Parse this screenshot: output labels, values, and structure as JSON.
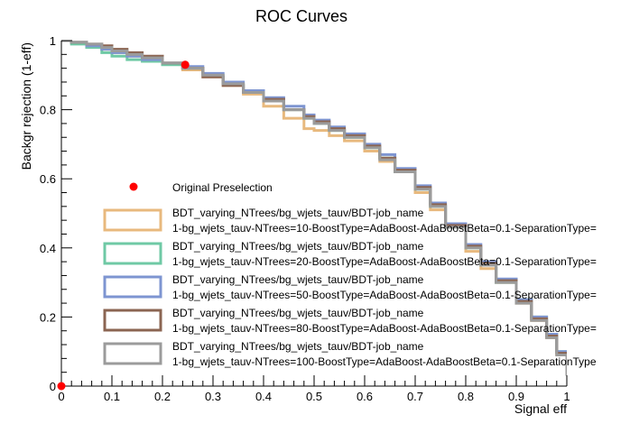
{
  "chart_data": {
    "type": "line",
    "title": "ROC Curves",
    "xlabel": "Signal eff",
    "ylabel": "Backgr rejection (1-eff)",
    "xlim": [
      0,
      1
    ],
    "ylim": [
      0,
      1
    ],
    "x_ticks": [
      "0",
      "0.1",
      "0.2",
      "0.3",
      "0.4",
      "0.5",
      "0.6",
      "0.7",
      "0.8",
      "0.9",
      "1"
    ],
    "y_ticks": [
      "0",
      "0.2",
      "0.4",
      "0.6",
      "0.8",
      "1"
    ],
    "grid": false,
    "legend_placement": "bottom-left",
    "series": [
      {
        "label_line1": "BDT_varying_NTrees/bg_wjets_tauv/BDT-job_name",
        "label_line2": "1-bg_wjets_tauv-NTrees=10-BoostType=AdaBoost-AdaBoostBeta=0.1-SeparationType=",
        "color": "#e8b97e",
        "x": [
          0.0,
          0.02,
          0.05,
          0.08,
          0.1,
          0.13,
          0.16,
          0.2,
          0.24,
          0.28,
          0.32,
          0.36,
          0.4,
          0.44,
          0.48,
          0.5,
          0.53,
          0.56,
          0.6,
          0.63,
          0.66,
          0.7,
          0.73,
          0.76,
          0.8,
          0.83,
          0.86,
          0.9,
          0.93,
          0.96,
          0.98,
          1.0
        ],
        "y": [
          1.0,
          0.995,
          0.985,
          0.975,
          0.965,
          0.955,
          0.945,
          0.935,
          0.915,
          0.895,
          0.87,
          0.845,
          0.81,
          0.775,
          0.745,
          0.74,
          0.725,
          0.71,
          0.68,
          0.65,
          0.62,
          0.56,
          0.51,
          0.46,
          0.39,
          0.34,
          0.3,
          0.24,
          0.19,
          0.14,
          0.09,
          0.04
        ]
      },
      {
        "label_line1": "BDT_varying_NTrees/bg_wjets_tauv/BDT-job_name",
        "label_line2": "1-bg_wjets_tauv-NTrees=20-BoostType=AdaBoost-AdaBoostBeta=0.1-SeparationType=",
        "color": "#6fc9a5",
        "x": [
          0.0,
          0.02,
          0.05,
          0.08,
          0.1,
          0.13,
          0.16,
          0.2,
          0.24,
          0.28,
          0.32,
          0.36,
          0.4,
          0.44,
          0.48,
          0.5,
          0.53,
          0.56,
          0.6,
          0.63,
          0.66,
          0.7,
          0.73,
          0.76,
          0.8,
          0.83,
          0.86,
          0.9,
          0.93,
          0.96,
          0.98,
          1.0
        ],
        "y": [
          1.0,
          0.99,
          0.98,
          0.965,
          0.955,
          0.945,
          0.94,
          0.93,
          0.92,
          0.9,
          0.875,
          0.85,
          0.83,
          0.8,
          0.775,
          0.76,
          0.74,
          0.72,
          0.69,
          0.66,
          0.62,
          0.57,
          0.52,
          0.46,
          0.4,
          0.35,
          0.3,
          0.25,
          0.2,
          0.15,
          0.1,
          0.05
        ]
      },
      {
        "label_line1": "BDT_varying_NTrees/bg_wjets_tauv/BDT-job_name",
        "label_line2": "1-bg_wjets_tauv-NTrees=50-BoostType=AdaBoost-AdaBoostBeta=0.1-SeparationType=",
        "color": "#7e95d1",
        "x": [
          0.0,
          0.02,
          0.05,
          0.08,
          0.1,
          0.13,
          0.16,
          0.2,
          0.24,
          0.28,
          0.32,
          0.36,
          0.4,
          0.44,
          0.48,
          0.5,
          0.53,
          0.56,
          0.6,
          0.63,
          0.66,
          0.7,
          0.73,
          0.76,
          0.8,
          0.83,
          0.86,
          0.9,
          0.93,
          0.96,
          0.98,
          1.0
        ],
        "y": [
          1.0,
          0.995,
          0.985,
          0.975,
          0.965,
          0.955,
          0.945,
          0.935,
          0.925,
          0.905,
          0.88,
          0.855,
          0.835,
          0.81,
          0.785,
          0.77,
          0.75,
          0.73,
          0.7,
          0.67,
          0.63,
          0.58,
          0.53,
          0.47,
          0.41,
          0.36,
          0.31,
          0.25,
          0.2,
          0.15,
          0.1,
          0.03
        ]
      },
      {
        "label_line1": "BDT_varying_NTrees/bg_wjets_tauv/BDT-job_name",
        "label_line2": "1-bg_wjets_tauv-NTrees=80-BoostType=AdaBoost-AdaBoostBeta=0.1-SeparationType=",
        "color": "#8b6552",
        "x": [
          0.0,
          0.02,
          0.05,
          0.08,
          0.1,
          0.13,
          0.16,
          0.2,
          0.24,
          0.28,
          0.32,
          0.36,
          0.4,
          0.44,
          0.48,
          0.5,
          0.53,
          0.56,
          0.6,
          0.63,
          0.66,
          0.7,
          0.73,
          0.76,
          0.8,
          0.83,
          0.86,
          0.9,
          0.93,
          0.96,
          0.98,
          1.0
        ],
        "y": [
          1.0,
          0.995,
          0.99,
          0.985,
          0.975,
          0.965,
          0.955,
          0.935,
          0.92,
          0.895,
          0.87,
          0.85,
          0.83,
          0.8,
          0.78,
          0.765,
          0.745,
          0.725,
          0.695,
          0.66,
          0.625,
          0.575,
          0.525,
          0.465,
          0.405,
          0.355,
          0.305,
          0.245,
          0.195,
          0.145,
          0.095,
          0.035
        ]
      },
      {
        "label_line1": "BDT_varying_NTrees/bg_wjets_tauv/BDT-job_name",
        "label_line2": "1-bg_wjets_tauv-NTrees=100-BoostType=AdaBoost-AdaBoostBeta=0.1-SeparationType",
        "color": "#9b9b9b",
        "x": [
          0.0,
          0.02,
          0.05,
          0.08,
          0.1,
          0.13,
          0.16,
          0.2,
          0.24,
          0.28,
          0.32,
          0.36,
          0.4,
          0.44,
          0.48,
          0.5,
          0.53,
          0.56,
          0.6,
          0.63,
          0.66,
          0.7,
          0.73,
          0.76,
          0.8,
          0.83,
          0.86,
          0.9,
          0.93,
          0.96,
          0.98,
          1.0
        ],
        "y": [
          1.0,
          0.995,
          0.99,
          0.98,
          0.97,
          0.96,
          0.95,
          0.935,
          0.92,
          0.9,
          0.875,
          0.85,
          0.825,
          0.8,
          0.775,
          0.76,
          0.74,
          0.72,
          0.69,
          0.655,
          0.62,
          0.57,
          0.52,
          0.46,
          0.4,
          0.35,
          0.3,
          0.24,
          0.19,
          0.14,
          0.09,
          0.03
        ]
      }
    ],
    "markers": [
      {
        "label": "Original Preselection",
        "color": "#ff0000",
        "points": [
          [
            0.245,
            0.93
          ],
          [
            0.0,
            0.0
          ]
        ]
      }
    ]
  }
}
